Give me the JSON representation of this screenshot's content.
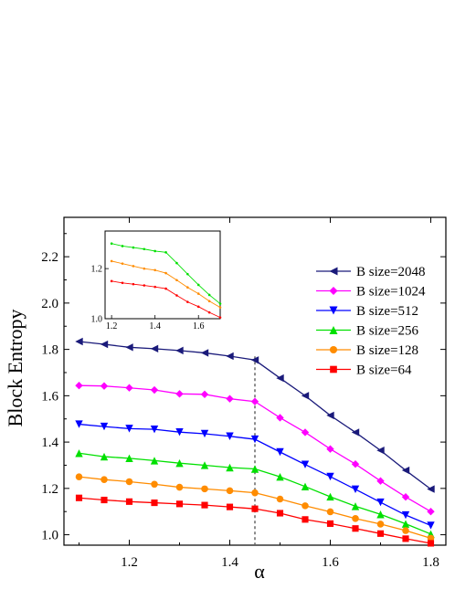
{
  "chart_data": {
    "type": "line",
    "xlabel": "α",
    "ylabel": "Block Entropy",
    "xlim": [
      1.07,
      1.83
    ],
    "ylim": [
      0.955,
      2.37
    ],
    "xticks": [
      "1.2",
      "1.4",
      "1.6",
      "1.8"
    ],
    "yticks": [
      "1.0",
      "1.2",
      "1.4",
      "1.6",
      "1.8",
      "2.0",
      "2.2"
    ],
    "xtick_values": [
      1.2,
      1.4,
      1.6,
      1.8
    ],
    "ytick_values": [
      1.0,
      1.2,
      1.4,
      1.6,
      1.8,
      2.0,
      2.2
    ],
    "grid": false,
    "legend_position": "right",
    "vline_x": 1.45,
    "x": [
      1.1,
      1.15,
      1.2,
      1.25,
      1.3,
      1.35,
      1.4,
      1.45,
      1.5,
      1.55,
      1.6,
      1.65,
      1.7,
      1.75,
      1.8
    ],
    "series": [
      {
        "name": "B size=2048",
        "color": "#1a1a7a",
        "marker": "triangle-left",
        "values": [
          1.834,
          1.822,
          1.809,
          1.803,
          1.795,
          1.785,
          1.771,
          1.754,
          1.676,
          1.6,
          1.515,
          1.442,
          1.364,
          1.278,
          1.197
        ]
      },
      {
        "name": "B size=1024",
        "color": "#ff00ff",
        "marker": "diamond",
        "values": [
          1.644,
          1.642,
          1.634,
          1.625,
          1.608,
          1.606,
          1.587,
          1.575,
          1.505,
          1.442,
          1.37,
          1.305,
          1.232,
          1.163,
          1.1
        ]
      },
      {
        "name": "B size=512",
        "color": "#0000ff",
        "marker": "triangle-down",
        "values": [
          1.477,
          1.467,
          1.458,
          1.455,
          1.443,
          1.436,
          1.425,
          1.412,
          1.357,
          1.303,
          1.251,
          1.196,
          1.14,
          1.085,
          1.04
        ]
      },
      {
        "name": "B size=256",
        "color": "#00e000",
        "marker": "triangle-up",
        "values": [
          1.352,
          1.337,
          1.33,
          1.32,
          1.309,
          1.3,
          1.29,
          1.284,
          1.25,
          1.208,
          1.164,
          1.123,
          1.088,
          1.047,
          1.003
        ]
      },
      {
        "name": "B size=128",
        "color": "#ff8c00",
        "marker": "circle",
        "values": [
          1.25,
          1.238,
          1.229,
          1.218,
          1.205,
          1.198,
          1.19,
          1.181,
          1.154,
          1.125,
          1.099,
          1.07,
          1.046,
          1.018,
          0.985
        ]
      },
      {
        "name": "B size=64",
        "color": "#ff0000",
        "marker": "square",
        "values": [
          1.159,
          1.15,
          1.143,
          1.138,
          1.133,
          1.128,
          1.12,
          1.112,
          1.093,
          1.066,
          1.048,
          1.027,
          1.005,
          0.983,
          0.963
        ]
      }
    ],
    "inset": {
      "xlim": [
        1.17,
        1.7
      ],
      "ylim": [
        1.0,
        1.35
      ],
      "xticks": [
        "1.2",
        "1.4",
        "1.6"
      ],
      "yticks": [
        "1.0",
        "1.2"
      ],
      "xtick_values": [
        1.2,
        1.4,
        1.6
      ],
      "ytick_values": [
        1.0,
        1.2
      ],
      "x": [
        1.2,
        1.25,
        1.3,
        1.35,
        1.4,
        1.45,
        1.5,
        1.55,
        1.6,
        1.65,
        1.7
      ],
      "series": [
        {
          "color": "#00e000",
          "values": [
            1.3,
            1.29,
            1.284,
            1.278,
            1.27,
            1.265,
            1.222,
            1.178,
            1.135,
            1.095,
            1.06
          ]
        },
        {
          "color": "#ff8c00",
          "values": [
            1.23,
            1.22,
            1.21,
            1.2,
            1.194,
            1.182,
            1.154,
            1.125,
            1.1,
            1.07,
            1.045
          ]
        },
        {
          "color": "#ff0000",
          "values": [
            1.15,
            1.143,
            1.138,
            1.133,
            1.127,
            1.12,
            1.093,
            1.067,
            1.048,
            1.025,
            1.005
          ]
        }
      ]
    }
  }
}
